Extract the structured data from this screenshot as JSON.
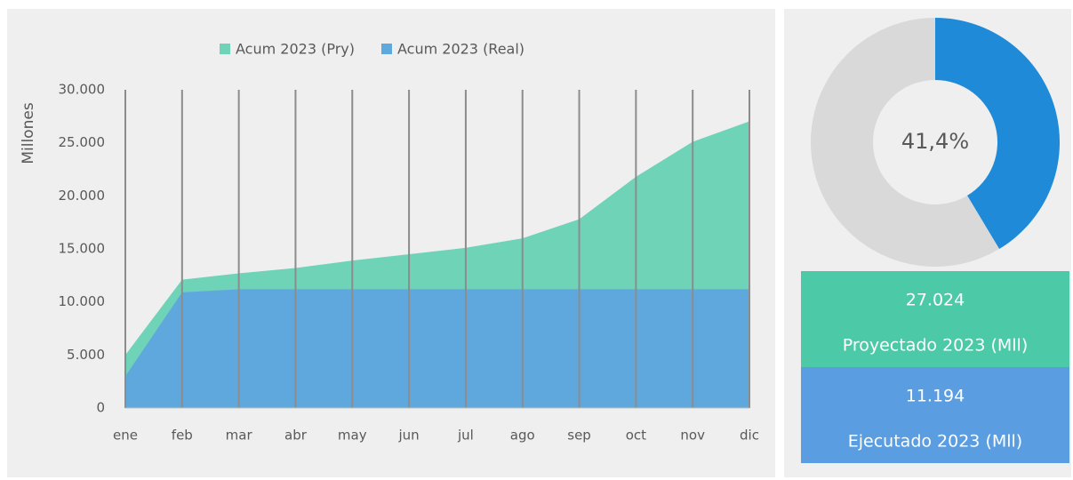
{
  "chart_data": [
    {
      "type": "area",
      "y_label": "Millones",
      "categories": [
        "ene",
        "feb",
        "mar",
        "abr",
        "may",
        "jun",
        "jul",
        "ago",
        "sep",
        "oct",
        "nov",
        "dic"
      ],
      "series": [
        {
          "name": "Acum 2023 (Pry)",
          "color": "#6fd3b8",
          "values": [
            5000,
            12100,
            12700,
            13200,
            13900,
            14500,
            15100,
            16000,
            17800,
            21800,
            25100,
            27024
          ]
        },
        {
          "name": "Acum 2023 (Real)",
          "color": "#5fa8de",
          "values": [
            3000,
            10900,
            11194,
            11194,
            11194,
            11194,
            11194,
            11194,
            11194,
            11194,
            11194,
            11194
          ]
        }
      ],
      "ylim": [
        0,
        30000
      ],
      "yticks": [
        0,
        {
          "value": 5000,
          "label": "5.000"
        },
        {
          "value": 10000,
          "label": "10.000"
        },
        {
          "value": 15000,
          "label": "15.000"
        },
        {
          "value": 20000,
          "label": "20.000"
        },
        {
          "value": 25000,
          "label": "25.000"
        },
        {
          "value": 30000,
          "label": "30.000"
        }
      ],
      "grid": true,
      "legend": "top"
    },
    {
      "type": "pie",
      "values": [
        41.4,
        58.6
      ],
      "value_labels": [
        "41,4%",
        null
      ],
      "colors": [
        "#1e8ad8",
        "#d9d9d9"
      ]
    }
  ],
  "cards": [
    {
      "value": "27.024",
      "label": "Proyectado 2023 (Mll)",
      "color": "#4ccaa8"
    },
    {
      "value": "11.194",
      "label": "Ejecutado 2023 (Mll)",
      "color": "#5a9de0"
    }
  ]
}
